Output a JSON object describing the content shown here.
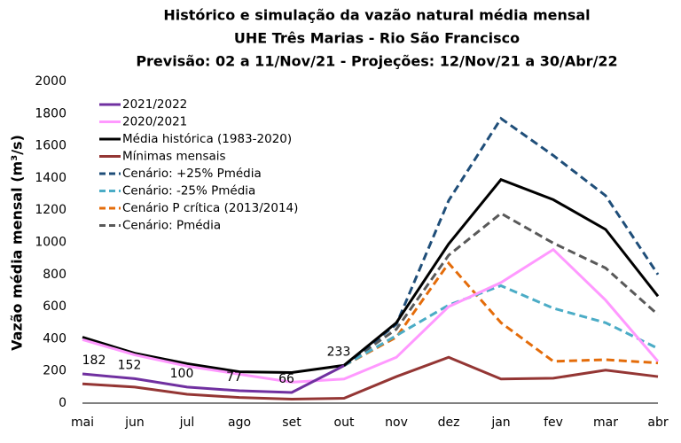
{
  "chart_data": {
    "type": "line",
    "title": [
      "Histórico e simulação da vazão natural média mensal",
      "UHE Três Marias - Rio São Francisco",
      "Previsão: 02 a 11/Nov/21 - Projeções: 12/Nov/21 a 30/Abr/22"
    ],
    "y_label": "Vazão média mensal (m³/s)",
    "categories": [
      "mai",
      "jun",
      "jul",
      "ago",
      "set",
      "out",
      "nov",
      "dez",
      "jan",
      "fev",
      "mar",
      "abr"
    ],
    "ylim": [
      0,
      2000
    ],
    "yticks": [
      0,
      200,
      400,
      600,
      800,
      1000,
      1200,
      1400,
      1600,
      1800,
      2000
    ],
    "legend": "upper left",
    "series": [
      {
        "name": "2021/2022",
        "color": "#7030a0",
        "style": "solid",
        "data_labels": true,
        "values": [
          182,
          152,
          100,
          77,
          66,
          233,
          null,
          null,
          null,
          null,
          null,
          null
        ]
      },
      {
        "name": "2020/2021",
        "color": "#ff99ff",
        "style": "solid",
        "values": [
          395,
          300,
          230,
          180,
          130,
          150,
          285,
          600,
          750,
          955,
          640,
          260
        ]
      },
      {
        "name": "Média histórica (1983-2020)",
        "color": "#000000",
        "style": "solid",
        "values": [
          410,
          310,
          245,
          195,
          190,
          235,
          500,
          990,
          1390,
          1265,
          1080,
          665
        ]
      },
      {
        "name": "Mínimas mensais",
        "color": "#943634",
        "style": "solid",
        "values": [
          120,
          100,
          55,
          35,
          25,
          30,
          165,
          285,
          150,
          155,
          205,
          165
        ]
      },
      {
        "name": "Cenário: +25% Pmédia",
        "color": "#1f4e79",
        "style": "dashed",
        "values": [
          null,
          null,
          null,
          null,
          null,
          233,
          490,
          1260,
          1770,
          1540,
          1290,
          800
        ]
      },
      {
        "name": "Cenário: -25% Pmédia",
        "color": "#4bacc6",
        "style": "dashed",
        "values": [
          null,
          null,
          null,
          null,
          null,
          233,
          420,
          610,
          730,
          590,
          500,
          340
        ]
      },
      {
        "name": "Cenário P crítica (2013/2014)",
        "color": "#e46c0a",
        "style": "dashed",
        "values": [
          null,
          null,
          null,
          null,
          null,
          233,
          410,
          870,
          500,
          260,
          270,
          250
        ]
      },
      {
        "name": "Cenário: Pmédia",
        "color": "#595959",
        "style": "dashed",
        "values": [
          null,
          null,
          null,
          null,
          null,
          233,
          460,
          920,
          1180,
          995,
          840,
          550
        ]
      }
    ]
  }
}
